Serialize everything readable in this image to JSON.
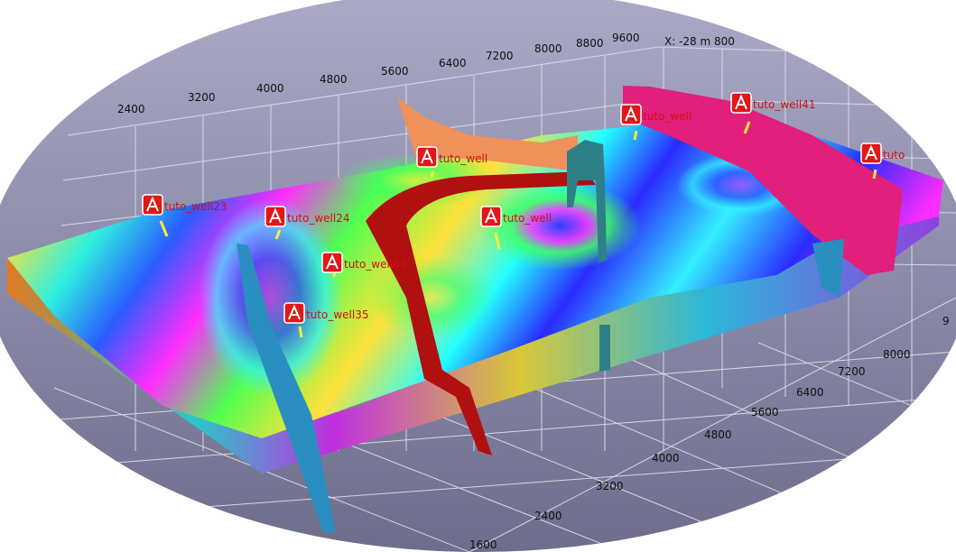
{
  "viewer": {
    "coordinate_readout": "X: -28 m 800",
    "colors": {
      "background_top": "#a9a9c6",
      "background_bottom": "#6d6d8c",
      "grid_line": "#d8d8e4",
      "fault_red": "#b01010",
      "fault_teal": "#2f7f86",
      "fault_blue": "#2a8fc0",
      "fault_magenta": "#e0207a",
      "fault_orange": "#f0905a",
      "well_label": "#d01010",
      "well_marker": "#e01818",
      "well_stick": "#ffe840"
    },
    "top_axis_ticks": [
      "2400",
      "3200",
      "4000",
      "4800",
      "5600",
      "6400",
      "7200",
      "8000",
      "8800",
      "9600"
    ],
    "right_axis_ticks": [
      "1600",
      "2400",
      "3200",
      "4000",
      "4800",
      "5600",
      "6400",
      "7200",
      "8000",
      "9"
    ],
    "wells": [
      {
        "name": "tuto_well41",
        "marker_icon": "well-marker-icon"
      },
      {
        "name": "tuto_well",
        "marker_icon": "well-marker-icon"
      },
      {
        "name": "tuto_well",
        "marker_icon": "well-marker-icon"
      },
      {
        "name": "tuto",
        "marker_icon": "well-marker-icon"
      },
      {
        "name": "tuto_well23",
        "marker_icon": "well-marker-icon"
      },
      {
        "name": "tuto_well24",
        "marker_icon": "well-marker-icon"
      },
      {
        "name": "tuto_well",
        "marker_icon": "well-marker-icon"
      },
      {
        "name": "tuto_well42",
        "marker_icon": "well-marker-icon"
      },
      {
        "name": "tuto_well35",
        "marker_icon": "well-marker-icon"
      }
    ]
  }
}
